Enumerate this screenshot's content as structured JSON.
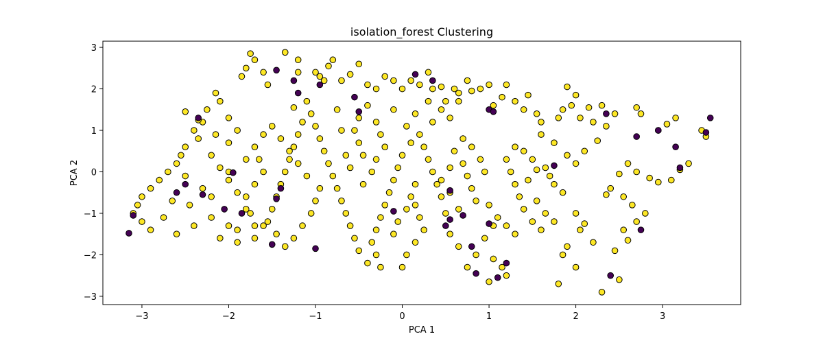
{
  "chart_data": {
    "type": "scatter",
    "title": "isolation_forest Clustering",
    "xlabel": "PCA 1",
    "ylabel": "PCA 2",
    "xlim": [
      -3.45,
      3.9
    ],
    "ylim": [
      -3.2,
      3.15
    ],
    "xticks": [
      -3,
      -2,
      -1,
      0,
      1,
      2,
      3
    ],
    "yticks": [
      -3,
      -2,
      -1,
      0,
      1,
      2,
      3
    ],
    "grid": false,
    "legend": "none",
    "colors": {
      "inlier": "#fde725",
      "outlier": "#440154",
      "edge": "#000000"
    },
    "series": [
      {
        "label_value": 1,
        "color": "#fde725",
        "points": [
          [
            -2.25,
            1.5
          ],
          [
            -2.15,
            1.9
          ],
          [
            -2.3,
            1.2
          ],
          [
            -2.4,
            1.0
          ],
          [
            -2.35,
            0.8
          ],
          [
            -2.5,
            0.6
          ],
          [
            -2.55,
            0.4
          ],
          [
            -2.6,
            0.2
          ],
          [
            -2.7,
            0.0
          ],
          [
            -2.8,
            -0.2
          ],
          [
            -2.9,
            -0.4
          ],
          [
            -3.0,
            -0.6
          ],
          [
            -3.05,
            -0.8
          ],
          [
            -3.1,
            -1.0
          ],
          [
            -3.0,
            -1.2
          ],
          [
            -2.9,
            -1.4
          ],
          [
            -2.6,
            -1.5
          ],
          [
            -2.4,
            -1.3
          ],
          [
            -2.2,
            -1.1
          ],
          [
            -2.0,
            -1.3
          ],
          [
            -2.1,
            -1.6
          ],
          [
            -1.9,
            -1.7
          ],
          [
            -1.7,
            -1.6
          ],
          [
            -1.6,
            -1.3
          ],
          [
            -1.8,
            -0.9
          ],
          [
            -1.9,
            -0.5
          ],
          [
            -2.0,
            -0.2
          ],
          [
            -2.1,
            0.1
          ],
          [
            -2.2,
            0.4
          ],
          [
            -2.0,
            0.7
          ],
          [
            -1.9,
            1.0
          ],
          [
            -2.0,
            1.3
          ],
          [
            -2.1,
            1.7
          ],
          [
            -1.85,
            2.3
          ],
          [
            -1.8,
            2.5
          ],
          [
            -1.75,
            2.85
          ],
          [
            -1.7,
            2.7
          ],
          [
            -1.6,
            2.4
          ],
          [
            -1.55,
            2.1
          ],
          [
            -1.35,
            2.88
          ],
          [
            -1.2,
            2.7
          ],
          [
            -1.2,
            2.4
          ],
          [
            -1.0,
            2.4
          ],
          [
            -0.95,
            2.3
          ],
          [
            -0.9,
            2.2
          ],
          [
            -0.85,
            2.55
          ],
          [
            -0.8,
            2.7
          ],
          [
            -0.7,
            2.2
          ],
          [
            -0.6,
            2.35
          ],
          [
            -0.5,
            2.6
          ],
          [
            -0.4,
            2.1
          ],
          [
            -0.3,
            2.0
          ],
          [
            -0.2,
            2.3
          ],
          [
            -0.1,
            2.2
          ],
          [
            0.0,
            2.0
          ],
          [
            0.1,
            2.2
          ],
          [
            0.2,
            2.1
          ],
          [
            0.3,
            2.4
          ],
          [
            0.35,
            2.0
          ],
          [
            0.45,
            2.05
          ],
          [
            0.5,
            1.7
          ],
          [
            0.6,
            2.0
          ],
          [
            0.65,
            1.9
          ],
          [
            0.75,
            2.2
          ],
          [
            0.8,
            1.95
          ],
          [
            0.9,
            2.0
          ],
          [
            1.0,
            2.1
          ],
          [
            1.05,
            1.6
          ],
          [
            1.15,
            1.8
          ],
          [
            1.2,
            2.1
          ],
          [
            1.3,
            1.7
          ],
          [
            1.4,
            1.5
          ],
          [
            1.45,
            1.85
          ],
          [
            1.55,
            1.4
          ],
          [
            1.6,
            1.2
          ],
          [
            1.8,
            1.3
          ],
          [
            1.85,
            1.5
          ],
          [
            1.9,
            2.05
          ],
          [
            1.95,
            1.6
          ],
          [
            2.0,
            1.85
          ],
          [
            2.05,
            1.3
          ],
          [
            2.15,
            1.55
          ],
          [
            2.2,
            1.2
          ],
          [
            2.3,
            1.6
          ],
          [
            2.35,
            1.1
          ],
          [
            2.45,
            1.4
          ],
          [
            2.7,
            1.55
          ],
          [
            2.75,
            1.4
          ],
          [
            2.95,
            1.0
          ],
          [
            3.05,
            1.15
          ],
          [
            3.15,
            1.3
          ],
          [
            3.5,
            0.85
          ],
          [
            3.45,
            1.0
          ],
          [
            3.3,
            0.2
          ],
          [
            3.2,
            0.05
          ],
          [
            3.1,
            -0.2
          ],
          [
            2.95,
            -0.25
          ],
          [
            2.85,
            -0.15
          ],
          [
            2.7,
            0.0
          ],
          [
            2.6,
            0.2
          ],
          [
            2.5,
            -0.05
          ],
          [
            2.4,
            -0.4
          ],
          [
            2.35,
            -0.55
          ],
          [
            2.55,
            -0.6
          ],
          [
            2.65,
            -0.8
          ],
          [
            2.8,
            -1.0
          ],
          [
            2.7,
            -1.2
          ],
          [
            2.55,
            -1.4
          ],
          [
            2.6,
            -1.65
          ],
          [
            2.45,
            -1.9
          ],
          [
            2.2,
            -1.7
          ],
          [
            2.1,
            -1.25
          ],
          [
            2.0,
            -1.0
          ],
          [
            2.05,
            -1.4
          ],
          [
            1.9,
            -1.8
          ],
          [
            1.85,
            -2.0
          ],
          [
            2.0,
            -2.3
          ],
          [
            1.8,
            -2.7
          ],
          [
            2.5,
            -2.6
          ],
          [
            2.3,
            -2.9
          ],
          [
            1.85,
            -0.5
          ],
          [
            1.75,
            -0.3
          ],
          [
            1.7,
            -0.1
          ],
          [
            1.65,
            0.1
          ],
          [
            1.5,
            0.3
          ],
          [
            1.4,
            0.5
          ],
          [
            1.3,
            0.6
          ],
          [
            1.2,
            0.3
          ],
          [
            1.25,
            0.0
          ],
          [
            1.3,
            -0.3
          ],
          [
            1.35,
            -0.6
          ],
          [
            1.4,
            -0.9
          ],
          [
            1.5,
            -1.2
          ],
          [
            1.6,
            -1.4
          ],
          [
            1.3,
            -1.5
          ],
          [
            1.2,
            -1.3
          ],
          [
            1.1,
            -1.1
          ],
          [
            1.0,
            -0.8
          ],
          [
            1.05,
            -1.3
          ],
          [
            0.95,
            -1.6
          ],
          [
            1.05,
            -2.1
          ],
          [
            1.15,
            -2.3
          ],
          [
            1.2,
            -2.5
          ],
          [
            1.0,
            -2.65
          ],
          [
            0.85,
            -2.0
          ],
          [
            0.75,
            -2.3
          ],
          [
            0.65,
            -1.8
          ],
          [
            0.55,
            -1.5
          ],
          [
            0.5,
            -1.0
          ],
          [
            0.45,
            -0.6
          ],
          [
            0.4,
            -0.3
          ],
          [
            0.35,
            0.0
          ],
          [
            0.3,
            0.3
          ],
          [
            0.25,
            0.6
          ],
          [
            0.2,
            0.9
          ],
          [
            0.1,
            0.7
          ],
          [
            0.0,
            0.4
          ],
          [
            -0.05,
            0.1
          ],
          [
            -0.1,
            -0.2
          ],
          [
            -0.15,
            -0.5
          ],
          [
            -0.2,
            -0.8
          ],
          [
            -0.25,
            -1.1
          ],
          [
            -0.3,
            -1.4
          ],
          [
            -0.35,
            -1.7
          ],
          [
            -0.3,
            -2.0
          ],
          [
            -0.25,
            -2.3
          ],
          [
            -0.4,
            -2.2
          ],
          [
            -0.5,
            -1.9
          ],
          [
            -0.55,
            -1.6
          ],
          [
            -0.6,
            -1.3
          ],
          [
            -0.65,
            -1.0
          ],
          [
            -0.7,
            -0.7
          ],
          [
            -0.75,
            -0.4
          ],
          [
            -0.8,
            -0.1
          ],
          [
            -0.85,
            0.2
          ],
          [
            -0.9,
            0.5
          ],
          [
            -0.95,
            0.8
          ],
          [
            -1.0,
            1.1
          ],
          [
            -1.05,
            1.4
          ],
          [
            -1.15,
            1.2
          ],
          [
            -1.2,
            0.9
          ],
          [
            -1.25,
            0.6
          ],
          [
            -1.3,
            0.3
          ],
          [
            -1.35,
            0.0
          ],
          [
            -1.4,
            -0.3
          ],
          [
            -1.45,
            -0.6
          ],
          [
            -1.5,
            -0.9
          ],
          [
            -1.55,
            -1.2
          ],
          [
            -1.45,
            -1.5
          ],
          [
            -1.35,
            -1.8
          ],
          [
            -1.25,
            -1.6
          ],
          [
            -1.15,
            -1.3
          ],
          [
            -1.05,
            -1.0
          ],
          [
            -1.0,
            -0.7
          ],
          [
            -0.95,
            -0.4
          ],
          [
            -1.1,
            -0.1
          ],
          [
            -1.2,
            0.2
          ],
          [
            -1.3,
            0.5
          ],
          [
            -1.4,
            0.8
          ],
          [
            -1.5,
            1.1
          ],
          [
            -1.6,
            0.9
          ],
          [
            -1.7,
            0.6
          ],
          [
            -1.65,
            0.3
          ],
          [
            -1.6,
            0.0
          ],
          [
            -1.7,
            -0.3
          ],
          [
            -1.8,
            -0.6
          ],
          [
            -1.75,
            -1.0
          ],
          [
            -1.7,
            -1.3
          ],
          [
            -1.9,
            -1.4
          ],
          [
            -2.3,
            -0.4
          ],
          [
            -2.5,
            -0.1
          ],
          [
            -2.65,
            -0.7
          ],
          [
            -2.75,
            -1.1
          ],
          [
            -2.45,
            -0.8
          ],
          [
            -2.2,
            -0.6
          ],
          [
            -2.0,
            0.0
          ],
          [
            -1.8,
            0.3
          ],
          [
            -2.15,
            0.9
          ],
          [
            -2.35,
            1.25
          ],
          [
            -2.5,
            1.45
          ],
          [
            0.6,
            0.5
          ],
          [
            0.7,
            0.2
          ],
          [
            0.75,
            -0.1
          ],
          [
            0.8,
            -0.4
          ],
          [
            0.85,
            -0.7
          ],
          [
            0.65,
            -0.9
          ],
          [
            0.55,
            -0.5
          ],
          [
            0.45,
            -0.2
          ],
          [
            0.55,
            0.1
          ],
          [
            0.7,
            0.8
          ],
          [
            0.8,
            0.6
          ],
          [
            0.9,
            0.3
          ],
          [
            0.95,
            0.0
          ],
          [
            0.15,
            -0.8
          ],
          [
            0.2,
            -1.1
          ],
          [
            0.25,
            -1.4
          ],
          [
            0.15,
            -1.7
          ],
          [
            0.05,
            -2.0
          ],
          [
            0.0,
            -2.3
          ],
          [
            -0.1,
            -1.5
          ],
          [
            -0.05,
            -1.2
          ],
          [
            0.05,
            -0.9
          ],
          [
            0.1,
            -0.6
          ],
          [
            0.15,
            -0.3
          ],
          [
            -0.45,
            0.4
          ],
          [
            -0.5,
            0.7
          ],
          [
            -0.55,
            1.0
          ],
          [
            -0.5,
            1.3
          ],
          [
            -0.4,
            1.6
          ],
          [
            -0.3,
            1.2
          ],
          [
            -0.25,
            0.9
          ],
          [
            -0.2,
            0.6
          ],
          [
            -0.3,
            0.3
          ],
          [
            -0.35,
            0.0
          ],
          [
            -0.45,
            -0.3
          ],
          [
            -0.6,
            0.1
          ],
          [
            -0.65,
            0.4
          ],
          [
            -0.7,
            1.0
          ],
          [
            -0.75,
            1.5
          ],
          [
            -1.1,
            1.7
          ],
          [
            -1.25,
            1.55
          ],
          [
            0.35,
            1.2
          ],
          [
            0.45,
            1.5
          ],
          [
            0.3,
            1.7
          ],
          [
            0.15,
            1.4
          ],
          [
            0.05,
            1.1
          ],
          [
            -0.1,
            1.5
          ],
          [
            0.55,
            1.3
          ],
          [
            0.65,
            1.7
          ],
          [
            1.6,
            0.9
          ],
          [
            1.75,
            0.7
          ],
          [
            1.9,
            0.4
          ],
          [
            2.0,
            0.2
          ],
          [
            2.1,
            0.5
          ],
          [
            2.25,
            0.75
          ],
          [
            1.55,
            -0.7
          ],
          [
            1.65,
            -1.0
          ],
          [
            1.75,
            -1.2
          ],
          [
            1.45,
            -0.2
          ],
          [
            1.55,
            0.05
          ]
        ]
      },
      {
        "label_value": 0,
        "color": "#440154",
        "points": [
          [
            -3.15,
            -1.48
          ],
          [
            -3.1,
            -1.05
          ],
          [
            -2.6,
            -0.5
          ],
          [
            -2.5,
            -0.3
          ],
          [
            -2.3,
            -0.55
          ],
          [
            -2.35,
            1.3
          ],
          [
            -2.05,
            -0.9
          ],
          [
            -1.95,
            -0.02
          ],
          [
            -1.85,
            -1.0
          ],
          [
            -1.45,
            2.45
          ],
          [
            -1.25,
            2.2
          ],
          [
            -1.5,
            -1.75
          ],
          [
            -1.45,
            -0.65
          ],
          [
            -1.4,
            -0.4
          ],
          [
            -1.2,
            1.9
          ],
          [
            -1.0,
            -1.85
          ],
          [
            -0.95,
            2.1
          ],
          [
            -0.55,
            1.8
          ],
          [
            -0.5,
            1.45
          ],
          [
            -0.1,
            -0.95
          ],
          [
            0.15,
            2.35
          ],
          [
            0.35,
            2.2
          ],
          [
            0.55,
            -0.45
          ],
          [
            0.55,
            -1.15
          ],
          [
            0.7,
            -1.05
          ],
          [
            0.8,
            -1.8
          ],
          [
            0.85,
            -2.45
          ],
          [
            1.0,
            1.5
          ],
          [
            1.0,
            -1.25
          ],
          [
            1.1,
            -2.55
          ],
          [
            1.2,
            -2.2
          ],
          [
            1.05,
            1.45
          ],
          [
            1.75,
            0.15
          ],
          [
            2.35,
            1.4
          ],
          [
            2.7,
            0.85
          ],
          [
            2.75,
            -1.4
          ],
          [
            2.95,
            1.0
          ],
          [
            3.15,
            0.6
          ],
          [
            3.2,
            0.1
          ],
          [
            3.5,
            0.95
          ],
          [
            3.55,
            1.3
          ],
          [
            2.4,
            -2.5
          ],
          [
            0.5,
            -1.3
          ]
        ]
      }
    ]
  }
}
